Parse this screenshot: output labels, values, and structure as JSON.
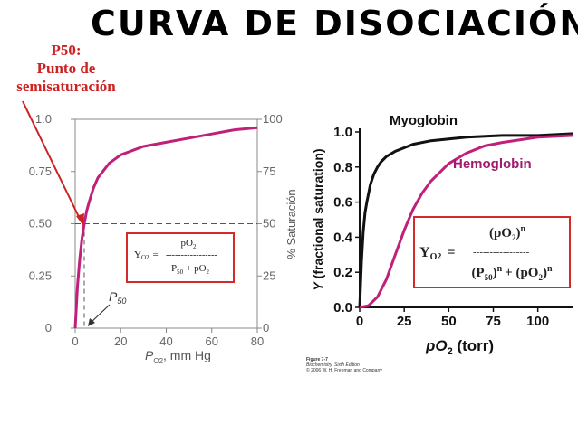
{
  "title": "CURVA DE DISOCIACIÓN",
  "annotation": {
    "line1": "P50:",
    "line2": "Punto de",
    "line3": "semisaturación",
    "color": "#cc2222"
  },
  "left_equation": {
    "lhs": "Y",
    "lhs_sub": "O2",
    "equals": "=",
    "numerator": "pO",
    "numerator_sub": "2",
    "dashes": "-----------------",
    "den_a": "P",
    "den_a_sub": "50",
    "den_plus": "+ pO",
    "den_b_sub": "2"
  },
  "right_equation": {
    "lhs": "Y",
    "lhs_sub": "O2",
    "equals": "=",
    "numerator": "(pO",
    "numerator_sub": "2",
    "numerator_close": ")",
    "numerator_sup": "n",
    "dashes": "-----------------",
    "den_a": "(P",
    "den_a_sub": "50",
    "den_a_close": ")",
    "den_a_sup": "n",
    "den_plus": "+ (pO",
    "den_b_sub": "2",
    "den_b_close": ")",
    "den_b_sup": "n"
  },
  "credit": {
    "line1": "Figure 7-7",
    "line2": "Biochemistry, Sixth Edition",
    "line3": "© 2006 W. H. Freeman and Company"
  },
  "colors": {
    "hemoglobin": "#c0207a",
    "myoglobin": "#111111",
    "equation_box": "#d32b2b",
    "axes_left": "#888888",
    "hemoglobin_label": "#a01a6e"
  },
  "chart_data": [
    {
      "type": "line",
      "xlabel_main": "P",
      "xlabel_sub": "O2",
      "xlabel_rest": ", mm Hg",
      "ylabel_right": "% Saturación",
      "xlim": [
        0,
        80
      ],
      "ylim": [
        0,
        1.0
      ],
      "xticks": [
        "0",
        "20",
        "40",
        "60",
        "80"
      ],
      "yticks_left": [
        "0",
        "0.25",
        "0.50",
        "0.75",
        "1.0"
      ],
      "yticks_right": [
        "0",
        "25",
        "50",
        "75",
        "100"
      ],
      "p50_label": "P",
      "p50_label_sub": "50",
      "p50_value": 4,
      "grid": false,
      "series": [
        {
          "x": [
            0,
            1,
            2,
            3,
            4,
            5,
            6,
            8,
            10,
            15,
            20,
            30,
            40,
            50,
            60,
            70,
            80
          ],
          "values": [
            0,
            0.2,
            0.33,
            0.43,
            0.5,
            0.56,
            0.6,
            0.67,
            0.72,
            0.79,
            0.83,
            0.87,
            0.89,
            0.91,
            0.93,
            0.95,
            0.96
          ]
        }
      ]
    },
    {
      "type": "line",
      "xlabel_main": "pO",
      "xlabel_sub": "2",
      "xlabel_rest": " (torr)",
      "ylabel_italic": "Y",
      "ylabel_rest": " (fractional saturation)",
      "xlim": [
        0,
        120
      ],
      "ylim": [
        0,
        1.0
      ],
      "xticks": [
        "0",
        "25",
        "50",
        "75",
        "100"
      ],
      "yticks": [
        "0.0",
        "0.2",
        "0.4",
        "0.6",
        "0.8",
        "1.0"
      ],
      "grid": false,
      "series": [
        {
          "name": "Myoglobin",
          "x": [
            0,
            1,
            2,
            3,
            4,
            6,
            8,
            10,
            12,
            15,
            20,
            25,
            30,
            40,
            50,
            60,
            80,
            100,
            120
          ],
          "values": [
            0,
            0.26,
            0.43,
            0.54,
            0.6,
            0.7,
            0.76,
            0.8,
            0.83,
            0.86,
            0.89,
            0.91,
            0.93,
            0.95,
            0.96,
            0.97,
            0.98,
            0.98,
            0.99
          ]
        },
        {
          "name": "Hemoglobin",
          "x": [
            0,
            5,
            10,
            15,
            20,
            25,
            30,
            35,
            40,
            50,
            60,
            70,
            80,
            100,
            120
          ],
          "values": [
            0,
            0.01,
            0.06,
            0.16,
            0.3,
            0.44,
            0.56,
            0.65,
            0.72,
            0.82,
            0.88,
            0.92,
            0.94,
            0.97,
            0.98
          ]
        }
      ]
    }
  ]
}
